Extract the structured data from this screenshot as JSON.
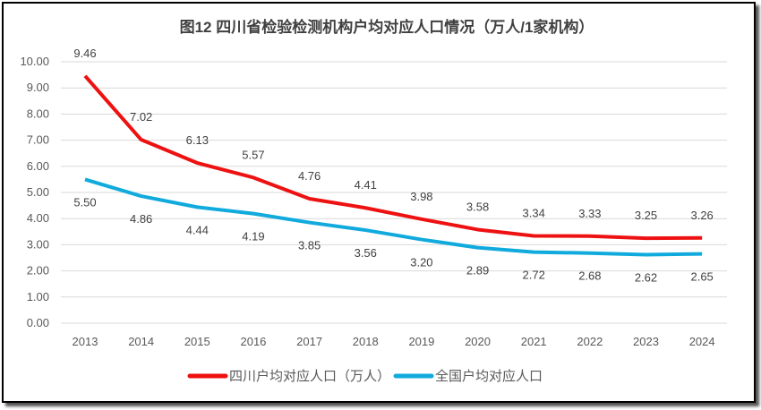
{
  "chart_data": {
    "type": "line",
    "title": "图12  四川省检验检测机构户均对应人口情况（万人/1家机构）",
    "xlabel": "",
    "ylabel": "",
    "categories": [
      "2013",
      "2014",
      "2015",
      "2016",
      "2017",
      "2018",
      "2019",
      "2020",
      "2021",
      "2022",
      "2023",
      "2024"
    ],
    "ylim": [
      0,
      10
    ],
    "yticks": [
      "0.00",
      "1.00",
      "2.00",
      "3.00",
      "4.00",
      "5.00",
      "6.00",
      "7.00",
      "8.00",
      "9.00",
      "10.00"
    ],
    "grid": true,
    "legend_position": "bottom",
    "series": [
      {
        "name": "四川户均对应人口（万人）",
        "color": "#ee1111",
        "label_position": "above",
        "values": [
          9.46,
          7.02,
          6.13,
          5.57,
          4.76,
          4.41,
          3.98,
          3.58,
          3.34,
          3.33,
          3.25,
          3.26
        ],
        "labels": [
          "9.46",
          "7.02",
          "6.13",
          "5.57",
          "4.76",
          "4.41",
          "3.98",
          "3.58",
          "3.34",
          "3.33",
          "3.25",
          "3.26"
        ]
      },
      {
        "name": "全国户均对应人口",
        "color": "#11aadd",
        "label_position": "below",
        "values": [
          5.5,
          4.86,
          4.44,
          4.19,
          3.85,
          3.56,
          3.2,
          2.89,
          2.72,
          2.68,
          2.62,
          2.65
        ],
        "labels": [
          "5.50",
          "4.86",
          "4.44",
          "4.19",
          "3.85",
          "3.56",
          "3.20",
          "2.89",
          "2.72",
          "2.68",
          "2.62",
          "2.65"
        ]
      }
    ]
  }
}
